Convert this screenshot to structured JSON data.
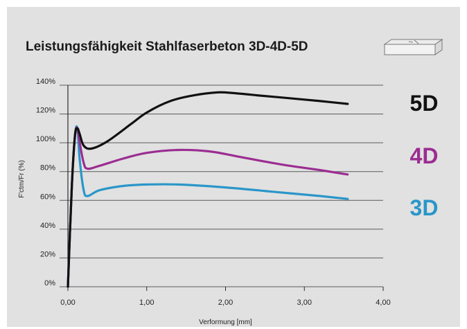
{
  "chart_data": {
    "type": "line",
    "title": "Leistungsfähigkeit Stahlfaserbeton 3D-4D-5D",
    "xlabel": "Verformung [mm]",
    "ylabel": "F'ctm/Fr (%)",
    "xlim": [
      0,
      4
    ],
    "ylim": [
      0,
      140
    ],
    "x_ticks": [
      "0,00",
      "1,00",
      "2,00",
      "3,00",
      "4,00"
    ],
    "y_ticks": [
      "0%",
      "20%",
      "40%",
      "60%",
      "80%",
      "100%",
      "120%",
      "140%"
    ],
    "grid": "horizontal",
    "legend_position": "right",
    "series": [
      {
        "name": "5D",
        "color": "#111111",
        "x": [
          0,
          0.05,
          0.09,
          0.12,
          0.15,
          0.2,
          0.3,
          0.5,
          0.8,
          1.0,
          1.3,
          1.6,
          1.9,
          2.1,
          2.4,
          2.8,
          3.2,
          3.55
        ],
        "y": [
          0,
          70,
          105,
          110,
          106,
          98,
          96,
          101,
          113,
          121,
          129,
          133,
          135,
          134.5,
          133,
          131,
          129,
          127
        ]
      },
      {
        "name": "4D",
        "color": "#9b2d91",
        "x": [
          0,
          0.05,
          0.09,
          0.12,
          0.15,
          0.2,
          0.25,
          0.4,
          0.7,
          1.0,
          1.4,
          1.8,
          2.2,
          2.7,
          3.2,
          3.55
        ],
        "y": [
          0,
          70,
          105,
          110,
          100,
          86,
          82,
          84,
          89,
          93,
          95,
          94,
          90,
          85,
          81,
          78
        ]
      },
      {
        "name": "3D",
        "color": "#2a96c9",
        "x": [
          0,
          0.05,
          0.09,
          0.12,
          0.15,
          0.2,
          0.25,
          0.4,
          0.7,
          1.0,
          1.4,
          2.0,
          2.6,
          3.2,
          3.55
        ],
        "y": [
          0,
          70,
          105,
          110,
          88,
          67,
          63,
          67,
          70,
          71,
          71,
          69,
          66,
          63,
          61
        ]
      }
    ]
  }
}
